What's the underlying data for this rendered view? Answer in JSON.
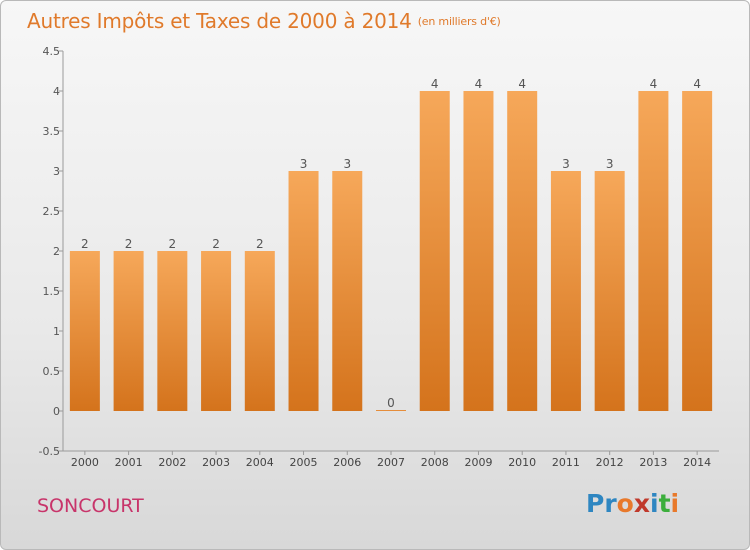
{
  "title": "Autres Impôts et Taxes de 2000 à 2014",
  "subtitle": "(en milliers d'€)",
  "commune": "SONCOURT",
  "logo": {
    "text": "Proxiti",
    "letters": [
      "P",
      "r",
      "o",
      "x",
      "i",
      "t",
      "i"
    ],
    "colors": [
      "#2e86c1",
      "#2e86c1",
      "#e8792b",
      "#c0392b",
      "#2e86c1",
      "#3cae3c",
      "#e8792b"
    ]
  },
  "colors": {
    "bar_top": "#f6a85a",
    "bar_bottom": "#d4731c",
    "title": "#e07a2b",
    "commune": "#c8346a"
  },
  "chart_data": {
    "type": "bar",
    "categories": [
      "2000",
      "2001",
      "2002",
      "2003",
      "2004",
      "2005",
      "2006",
      "2007",
      "2008",
      "2009",
      "2010",
      "2011",
      "2012",
      "2013",
      "2014"
    ],
    "values": [
      2,
      2,
      2,
      2,
      2,
      3,
      3,
      0,
      4,
      4,
      4,
      3,
      3,
      4,
      4
    ],
    "data_labels": [
      "2",
      "2",
      "2",
      "2",
      "2",
      "3",
      "3",
      "0",
      "4",
      "4",
      "4",
      "3",
      "3",
      "4",
      "4"
    ],
    "yticks": [
      -0.5,
      0,
      0.5,
      1,
      1.5,
      2,
      2.5,
      3,
      3.5,
      4,
      4.5
    ],
    "ytick_labels": [
      "-0.5",
      "0",
      "0.5",
      "1",
      "1.5",
      "2",
      "2.5",
      "3",
      "3.5",
      "4",
      "4.5"
    ],
    "ylim": [
      -0.5,
      4.5
    ],
    "xlabel": "",
    "ylabel": "",
    "grid": false
  }
}
